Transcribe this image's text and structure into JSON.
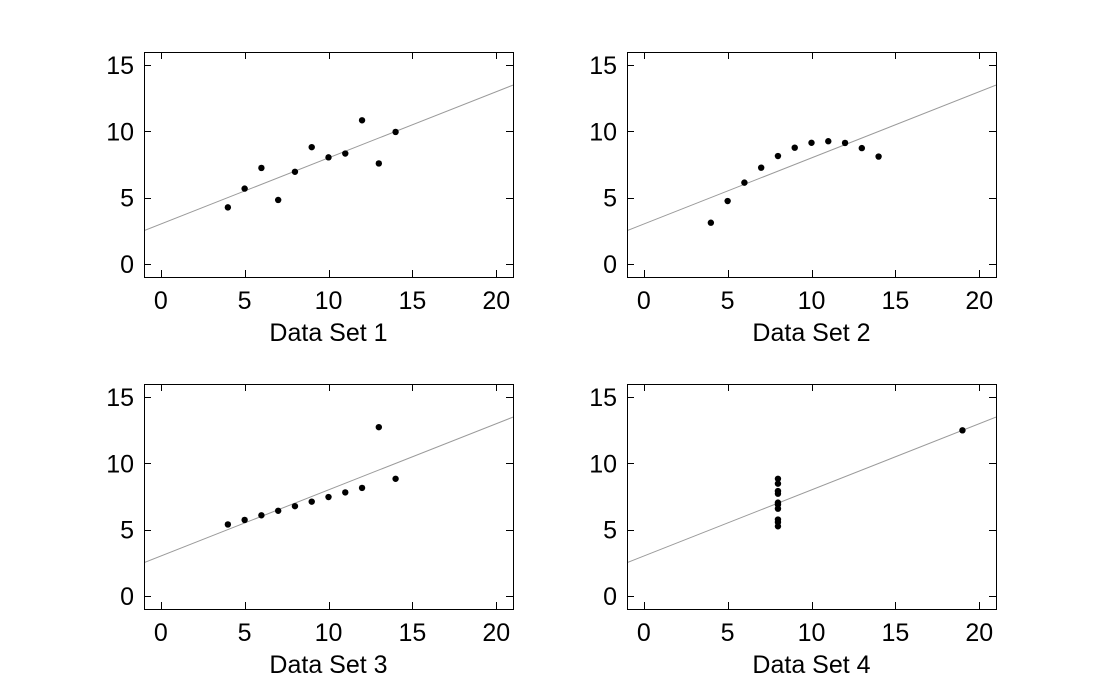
{
  "chart_data": [
    {
      "type": "scatter",
      "xlabel": "Data Set 1",
      "xlim": [
        -1,
        21
      ],
      "ylim": [
        -1,
        16
      ],
      "xticks": [
        0,
        5,
        10,
        15,
        20
      ],
      "yticks": [
        0,
        5,
        10,
        15
      ],
      "x": [
        10,
        8,
        13,
        9,
        11,
        14,
        6,
        4,
        12,
        7,
        5
      ],
      "y": [
        8.04,
        6.95,
        7.58,
        8.81,
        8.33,
        9.96,
        7.24,
        4.26,
        10.84,
        4.82,
        5.68
      ],
      "fit": {
        "intercept": 3.0,
        "slope": 0.5
      },
      "grid": false
    },
    {
      "type": "scatter",
      "xlabel": "Data Set 2",
      "xlim": [
        -1,
        21
      ],
      "ylim": [
        -1,
        16
      ],
      "xticks": [
        0,
        5,
        10,
        15,
        20
      ],
      "yticks": [
        0,
        5,
        10,
        15
      ],
      "x": [
        10,
        8,
        13,
        9,
        11,
        14,
        6,
        4,
        12,
        7,
        5
      ],
      "y": [
        9.14,
        8.14,
        8.74,
        8.77,
        9.26,
        8.1,
        6.13,
        3.1,
        9.13,
        7.26,
        4.74
      ],
      "fit": {
        "intercept": 3.0,
        "slope": 0.5
      },
      "grid": false
    },
    {
      "type": "scatter",
      "xlabel": "Data Set 3",
      "xlim": [
        -1,
        21
      ],
      "ylim": [
        -1,
        16
      ],
      "xticks": [
        0,
        5,
        10,
        15,
        20
      ],
      "yticks": [
        0,
        5,
        10,
        15
      ],
      "x": [
        10,
        8,
        13,
        9,
        11,
        14,
        6,
        4,
        12,
        7,
        5
      ],
      "y": [
        7.46,
        6.77,
        12.74,
        7.11,
        7.81,
        8.84,
        6.08,
        5.39,
        8.15,
        6.42,
        5.73
      ],
      "fit": {
        "intercept": 3.0,
        "slope": 0.5
      },
      "grid": false
    },
    {
      "type": "scatter",
      "xlabel": "Data Set 4",
      "xlim": [
        -1,
        21
      ],
      "ylim": [
        -1,
        16
      ],
      "xticks": [
        0,
        5,
        10,
        15,
        20
      ],
      "yticks": [
        0,
        5,
        10,
        15
      ],
      "x": [
        8,
        8,
        8,
        8,
        8,
        8,
        8,
        19,
        8,
        8,
        8
      ],
      "y": [
        6.58,
        5.76,
        7.71,
        8.84,
        8.47,
        7.04,
        5.25,
        12.5,
        5.56,
        7.91,
        6.89
      ],
      "fit": {
        "intercept": 3.0,
        "slope": 0.5
      },
      "grid": false
    }
  ]
}
